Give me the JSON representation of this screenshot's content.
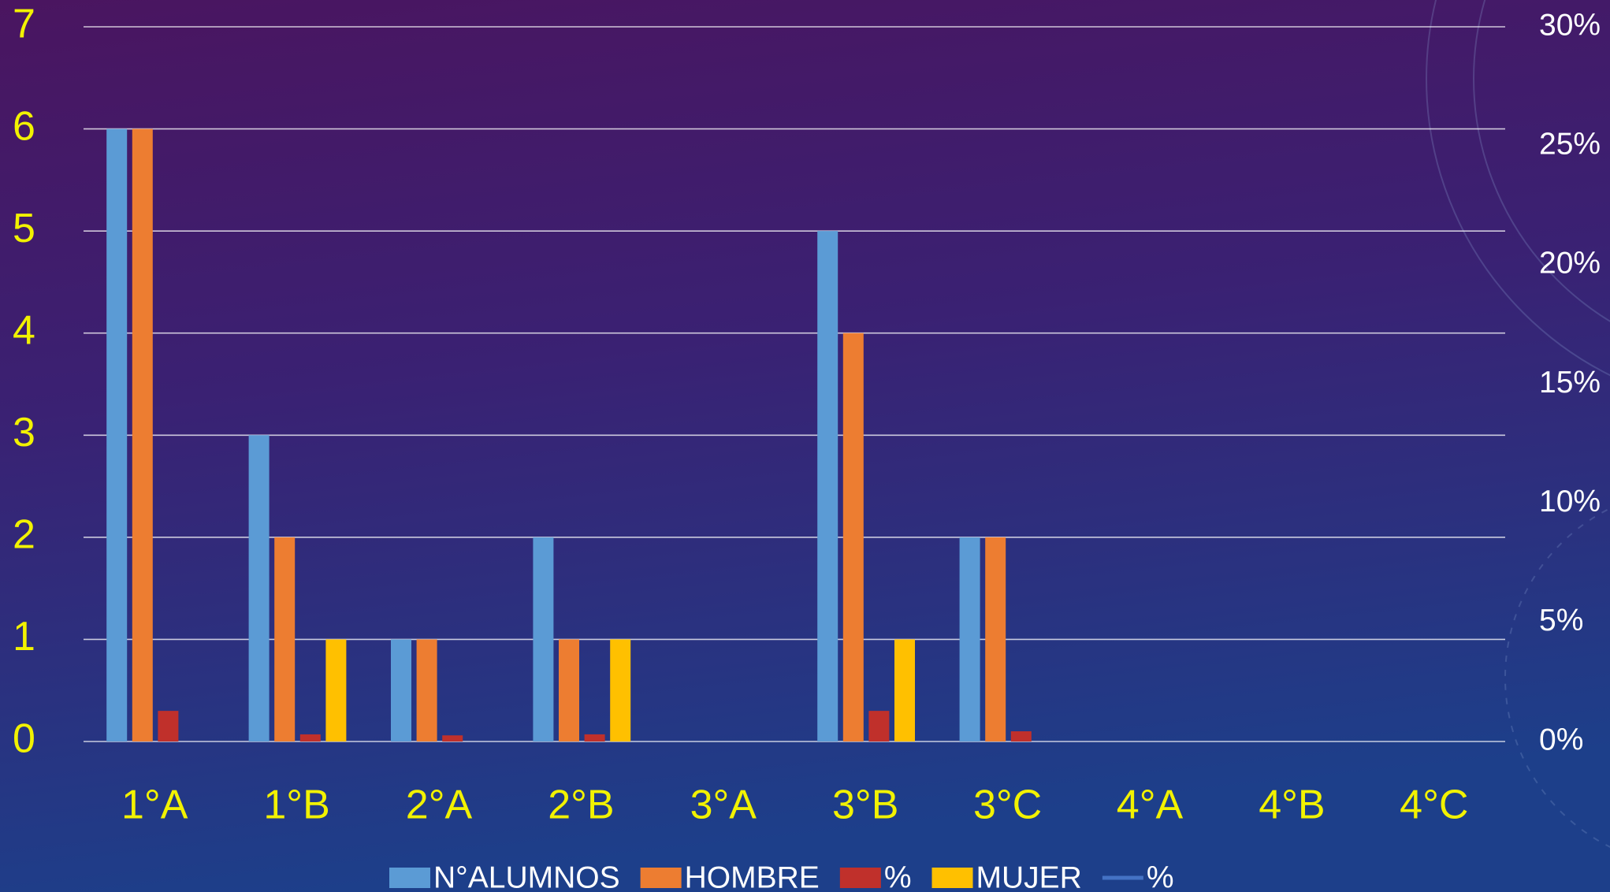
{
  "chart_data": {
    "type": "bar",
    "categories": [
      "1°A",
      "1°B",
      "2°A",
      "2°B",
      "3°A",
      "3°B",
      "3°C",
      "4°A",
      "4°B",
      "4°C"
    ],
    "series": [
      {
        "name": "N°ALUMNOS",
        "color": "#5b9bd5",
        "values": [
          6,
          3,
          1,
          2,
          null,
          5,
          2,
          null,
          null,
          null
        ]
      },
      {
        "name": "HOMBRE",
        "color": "#ed7d31",
        "values": [
          6,
          2,
          1,
          1,
          null,
          4,
          2,
          null,
          null,
          null
        ]
      },
      {
        "name": "%",
        "color": "#c0302b",
        "values": [
          0.3,
          0.07,
          0.06,
          0.07,
          null,
          0.3,
          0.1,
          null,
          null,
          null
        ]
      },
      {
        "name": "MUJER",
        "color": "#ffc000",
        "values": [
          null,
          1,
          null,
          1,
          null,
          1,
          null,
          null,
          null,
          null
        ]
      },
      {
        "name": "%",
        "color": "#4472c4",
        "type": "line",
        "axis": "y2",
        "values": [
          null,
          null,
          null,
          null,
          null,
          null,
          null,
          null,
          null,
          null
        ]
      }
    ],
    "ylim": [
      0,
      7
    ],
    "yticks": [
      0,
      1,
      2,
      3,
      4,
      5,
      6,
      7
    ],
    "y2lim": [
      0,
      30
    ],
    "y2ticks": [
      {
        "value": 0,
        "label": "0%"
      },
      {
        "value": 5,
        "label": "5%"
      },
      {
        "value": 10,
        "label": "10%"
      },
      {
        "value": 15,
        "label": "15%"
      },
      {
        "value": 20,
        "label": "20%"
      },
      {
        "value": 25,
        "label": "25%"
      },
      {
        "value": 30,
        "label": "30%"
      }
    ],
    "grid": true,
    "legend": "bottom"
  }
}
